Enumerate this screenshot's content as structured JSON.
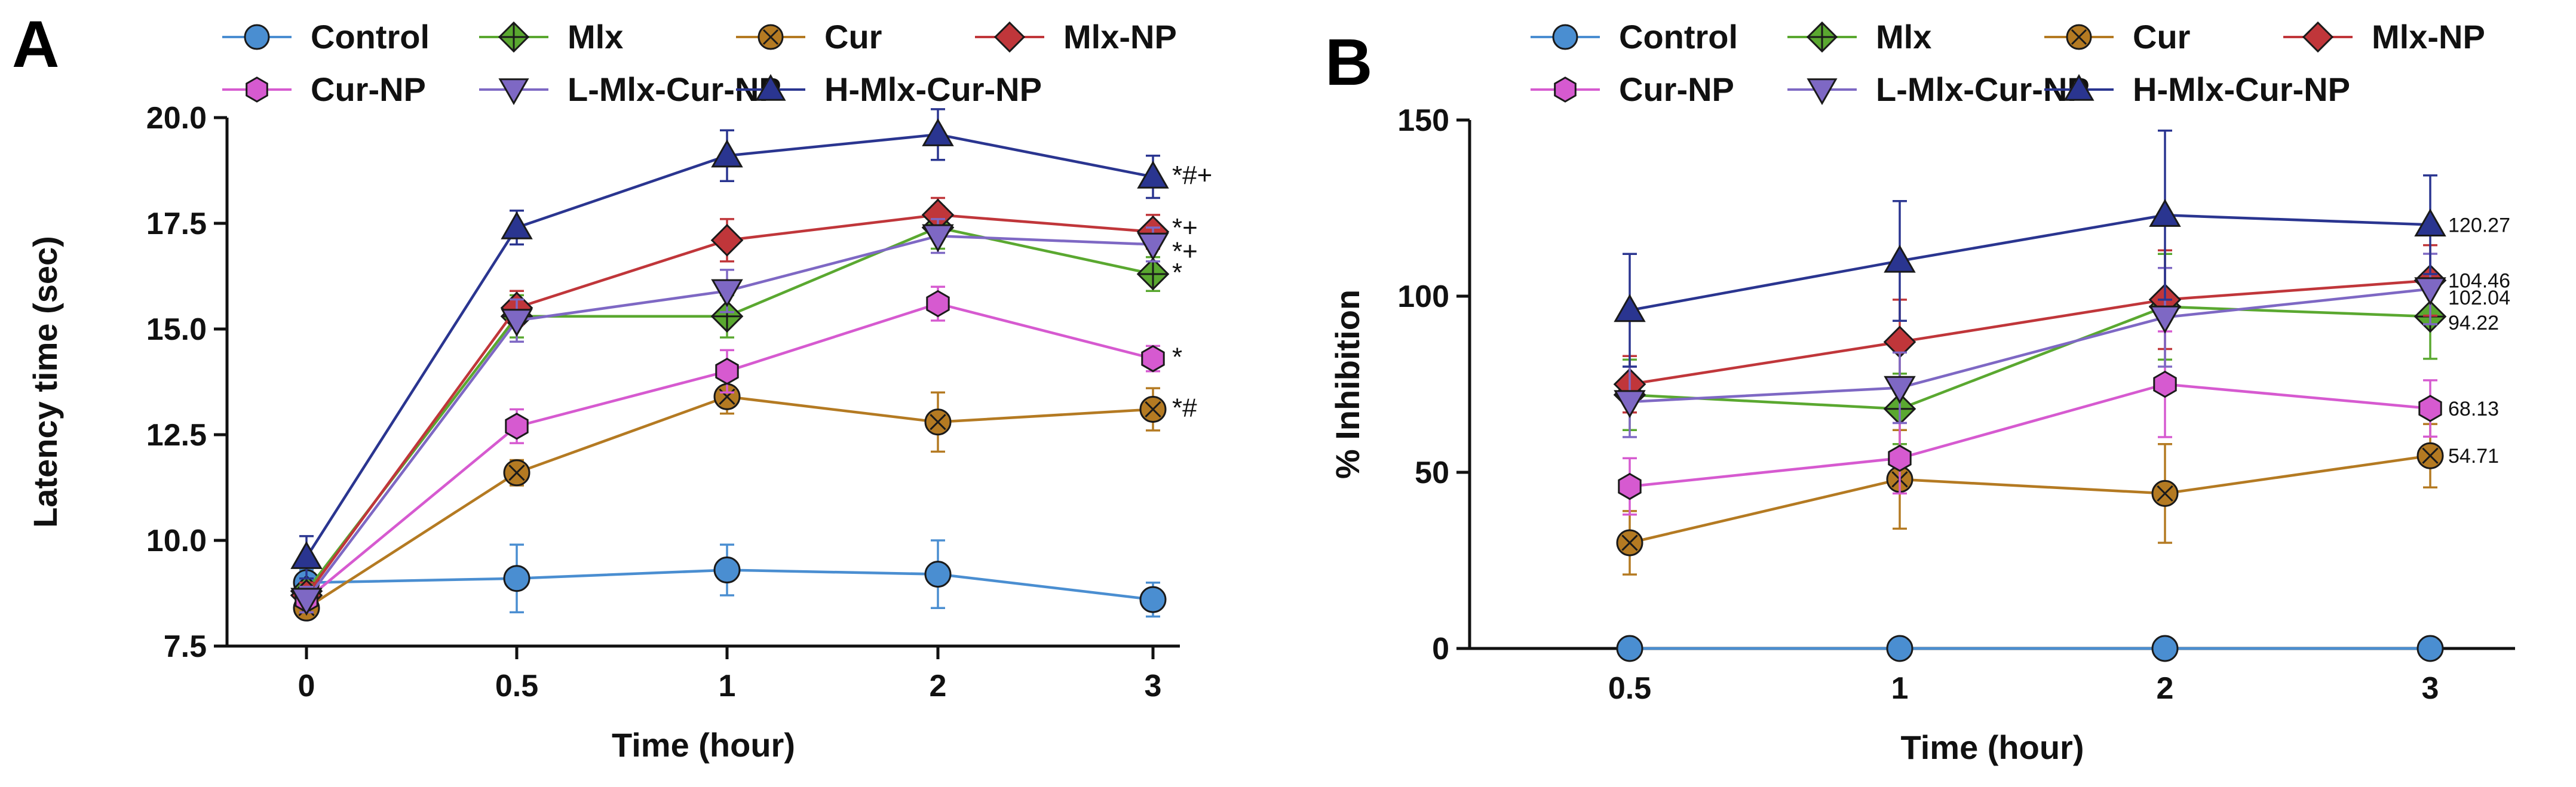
{
  "colors": {
    "Control": "#4a8ed1",
    "Mlx": "#5aa830",
    "Cur": "#b47a22",
    "Mlx-NP": "#c0363a",
    "Cur-NP": "#d65ad0",
    "L-Mlx-Cur-NP": "#7e68c4",
    "H-Mlx-Cur-NP": "#2a3590"
  },
  "markers": {
    "Control": "circle",
    "Mlx": "diamond-plus",
    "Cur": "circle-x",
    "Mlx-NP": "diamond",
    "Cur-NP": "hexagon",
    "L-Mlx-Cur-NP": "triangle-down",
    "H-Mlx-Cur-NP": "triangle-up"
  },
  "chart_data": [
    {
      "panel": "A",
      "type": "line",
      "xlabel": "Time (hour)",
      "ylabel": "Latency time (sec)",
      "categories": [
        "0",
        "0.5",
        "1",
        "2",
        "3"
      ],
      "ylim": [
        7.5,
        20.0
      ],
      "yticks": [
        "7.5",
        "10.0",
        "12.5",
        "15.0",
        "17.5",
        "20.0"
      ],
      "legend_position": "top",
      "series": [
        {
          "name": "Control",
          "values": [
            9.0,
            9.1,
            9.3,
            9.2,
            8.6
          ],
          "errors": [
            0.3,
            0.8,
            0.6,
            0.8,
            0.4
          ]
        },
        {
          "name": "Mlx",
          "values": [
            8.8,
            15.3,
            15.3,
            17.4,
            16.3
          ],
          "errors": [
            0.3,
            0.5,
            0.5,
            0.5,
            0.4
          ]
        },
        {
          "name": "Cur",
          "values": [
            8.4,
            11.6,
            13.4,
            12.8,
            13.1
          ],
          "errors": [
            0.2,
            0.3,
            0.4,
            0.7,
            0.5
          ]
        },
        {
          "name": "Mlx-NP",
          "values": [
            8.7,
            15.5,
            17.1,
            17.7,
            17.3
          ],
          "errors": [
            0.3,
            0.4,
            0.5,
            0.4,
            0.4
          ]
        },
        {
          "name": "Cur-NP",
          "values": [
            8.6,
            12.7,
            14.0,
            15.6,
            14.3
          ],
          "errors": [
            0.3,
            0.4,
            0.5,
            0.4,
            0.3
          ]
        },
        {
          "name": "L-Mlx-Cur-NP",
          "values": [
            8.6,
            15.2,
            15.9,
            17.2,
            17.0
          ],
          "errors": [
            0.3,
            0.5,
            0.5,
            0.4,
            0.4
          ]
        },
        {
          "name": "H-Mlx-Cur-NP",
          "values": [
            9.6,
            17.4,
            19.1,
            19.6,
            18.6
          ],
          "errors": [
            0.5,
            0.4,
            0.6,
            0.6,
            0.5
          ]
        }
      ],
      "annotations": [
        {
          "series": "H-Mlx-Cur-NP",
          "text": "*#+"
        },
        {
          "series": "Mlx-NP",
          "text": "*+"
        },
        {
          "series": "L-Mlx-Cur-NP",
          "text": "*+"
        },
        {
          "series": "Mlx",
          "text": "*"
        },
        {
          "series": "Cur-NP",
          "text": "*"
        },
        {
          "series": "Cur",
          "text": "*#"
        }
      ]
    },
    {
      "panel": "B",
      "type": "line",
      "xlabel": "Time (hour)",
      "ylabel": "% Inhibition",
      "categories": [
        "0.5",
        "1",
        "2",
        "3"
      ],
      "ylim": [
        0,
        150
      ],
      "yticks": [
        "0",
        "50",
        "100",
        "150"
      ],
      "legend_position": "top",
      "series": [
        {
          "name": "Control",
          "values": [
            0,
            0,
            0,
            0
          ],
          "errors": [
            0,
            0,
            0,
            0
          ]
        },
        {
          "name": "Mlx",
          "values": [
            72,
            68,
            97,
            94.22
          ],
          "errors": [
            10,
            10,
            15,
            12
          ]
        },
        {
          "name": "Cur",
          "values": [
            30,
            48,
            44,
            54.71
          ],
          "errors": [
            9,
            14,
            14,
            9
          ]
        },
        {
          "name": "Mlx-NP",
          "values": [
            75,
            87,
            99,
            104.46
          ],
          "errors": [
            8,
            12,
            14,
            10
          ]
        },
        {
          "name": "Cur-NP",
          "values": [
            46,
            54,
            75,
            68.13
          ],
          "errors": [
            8,
            10,
            15,
            8
          ]
        },
        {
          "name": "L-Mlx-Cur-NP",
          "values": [
            70,
            74,
            94,
            102.04
          ],
          "errors": [
            10,
            10,
            14,
            10
          ]
        },
        {
          "name": "H-Mlx-Cur-NP",
          "values": [
            96,
            110,
            123,
            120.27
          ],
          "errors": [
            16,
            17,
            24,
            14
          ]
        }
      ],
      "value_labels": [
        {
          "series": "H-Mlx-Cur-NP",
          "text": "120.27"
        },
        {
          "series": "Mlx-NP",
          "text": "104.46"
        },
        {
          "series": "L-Mlx-Cur-NP",
          "text": "102.04"
        },
        {
          "series": "Mlx",
          "text": "94.22"
        },
        {
          "series": "Cur-NP",
          "text": "68.13"
        },
        {
          "series": "Cur",
          "text": "54.71"
        }
      ]
    }
  ]
}
